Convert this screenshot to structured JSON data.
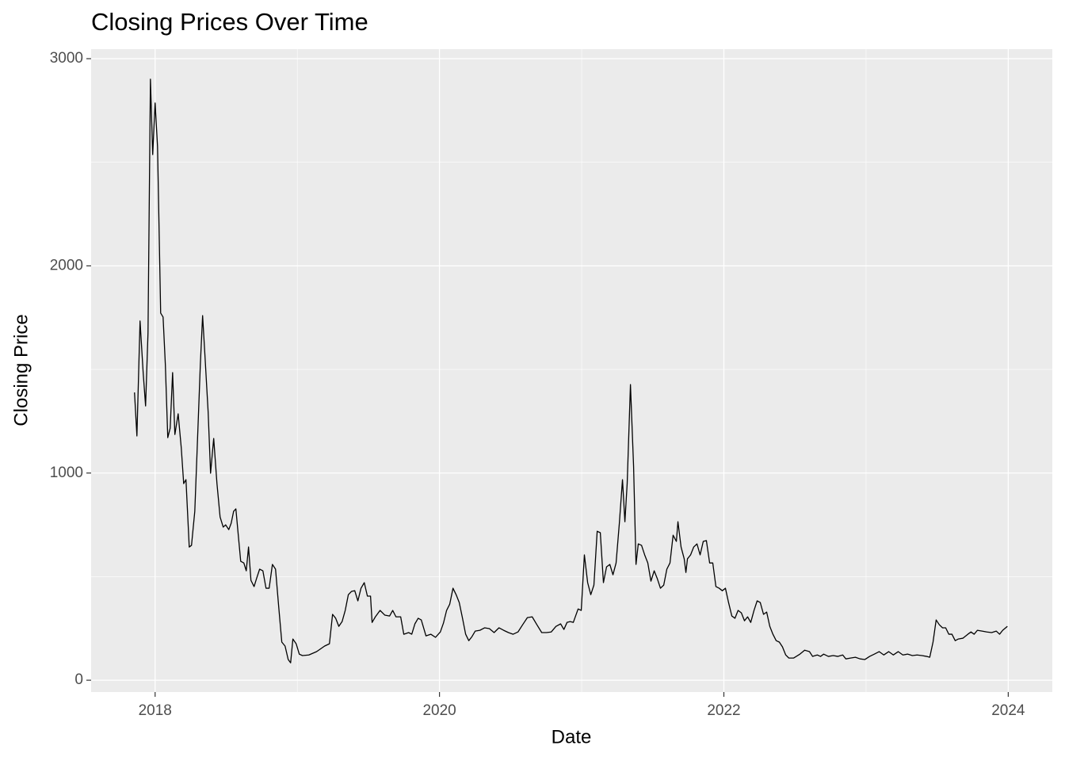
{
  "chart_data": {
    "type": "line",
    "title": "Closing Prices Over Time",
    "x_label": "Date",
    "y_label": "Closing Price",
    "xlim": [
      2017.55,
      2024.31
    ],
    "ylim": [
      -57,
      3046
    ],
    "xticks": [
      2018,
      2020,
      2022,
      2024
    ],
    "yticks": [
      0,
      1000,
      2000,
      3000
    ],
    "minor_xticks": [
      2019,
      2021,
      2023
    ],
    "minor_yticks": [
      500,
      1500,
      2500
    ],
    "grid": true,
    "background": "#ebebeb",
    "series": [
      {
        "color": "#000000",
        "x": [
          2017.855,
          2017.872,
          2017.894,
          2017.916,
          2017.933,
          2017.95,
          2017.967,
          2017.983,
          2018.0,
          2018.017,
          2018.039,
          2018.056,
          2018.072,
          2018.089,
          2018.106,
          2018.123,
          2018.139,
          2018.162,
          2018.184,
          2018.201,
          2018.217,
          2018.24,
          2018.256,
          2018.279,
          2018.295,
          2018.318,
          2018.334,
          2018.351,
          2018.373,
          2018.39,
          2018.412,
          2018.435,
          2018.457,
          2018.479,
          2018.496,
          2018.518,
          2018.535,
          2018.552,
          2018.568,
          2018.585,
          2018.602,
          2018.624,
          2018.641,
          2018.657,
          2018.674,
          2018.696,
          2018.713,
          2018.735,
          2018.758,
          2018.78,
          2018.802,
          2018.825,
          2018.847,
          2018.869,
          2018.891,
          2018.914,
          2018.936,
          2018.953,
          2018.969,
          2018.992,
          2019.014,
          2019.036,
          2019.081,
          2019.136,
          2019.192,
          2019.226,
          2019.248,
          2019.27,
          2019.292,
          2019.315,
          2019.337,
          2019.359,
          2019.382,
          2019.404,
          2019.426,
          2019.448,
          2019.471,
          2019.493,
          2019.515,
          2019.526,
          2019.549,
          2019.582,
          2019.616,
          2019.649,
          2019.671,
          2019.694,
          2019.727,
          2019.749,
          2019.783,
          2019.805,
          2019.827,
          2019.85,
          2019.872,
          2019.905,
          2019.939,
          2019.972,
          2020.006,
          2020.028,
          2020.05,
          2020.072,
          2020.095,
          2020.117,
          2020.139,
          2020.162,
          2020.184,
          2020.206,
          2020.228,
          2020.251,
          2020.284,
          2020.318,
          2020.351,
          2020.384,
          2020.418,
          2020.451,
          2020.485,
          2020.518,
          2020.552,
          2020.585,
          2020.618,
          2020.652,
          2020.685,
          2020.719,
          2020.752,
          2020.786,
          2020.819,
          2020.852,
          2020.875,
          2020.897,
          2020.919,
          2020.941,
          2020.975,
          2020.997,
          2021.019,
          2021.042,
          2021.064,
          2021.086,
          2021.109,
          2021.131,
          2021.153,
          2021.175,
          2021.198,
          2021.22,
          2021.242,
          2021.265,
          2021.287,
          2021.304,
          2021.32,
          2021.343,
          2021.365,
          2021.382,
          2021.398,
          2021.421,
          2021.443,
          2021.465,
          2021.487,
          2021.51,
          2021.532,
          2021.554,
          2021.577,
          2021.599,
          2021.621,
          2021.643,
          2021.666,
          2021.677,
          2021.699,
          2021.721,
          2021.733,
          2021.744,
          2021.766,
          2021.788,
          2021.811,
          2021.833,
          2021.855,
          2021.877,
          2021.9,
          2021.922,
          2021.944,
          2021.967,
          2021.989,
          2022.011,
          2022.033,
          2022.056,
          2022.078,
          2022.1,
          2022.123,
          2022.145,
          2022.167,
          2022.189,
          2022.212,
          2022.234,
          2022.256,
          2022.279,
          2022.301,
          2022.323,
          2022.345,
          2022.368,
          2022.39,
          2022.412,
          2022.435,
          2022.457,
          2022.49,
          2022.535,
          2022.568,
          2022.602,
          2022.624,
          2022.657,
          2022.68,
          2022.702,
          2022.735,
          2022.769,
          2022.802,
          2022.836,
          2022.858,
          2022.891,
          2022.925,
          2022.958,
          2022.992,
          2023.025,
          2023.058,
          2023.092,
          2023.125,
          2023.159,
          2023.192,
          2023.226,
          2023.259,
          2023.292,
          2023.326,
          2023.359,
          2023.393,
          2023.426,
          2023.448,
          2023.471,
          2023.493,
          2023.515,
          2023.538,
          2023.56,
          2023.582,
          2023.604,
          2023.627,
          2023.649,
          2023.682,
          2023.716,
          2023.738,
          2023.76,
          2023.783,
          2023.816,
          2023.85,
          2023.883,
          2023.916,
          2023.939,
          2023.961,
          2023.994
        ],
        "values": [
          1389,
          1179,
          1734,
          1485,
          1324,
          1676,
          2901,
          2537,
          2786,
          2576,
          1772,
          1753,
          1523,
          1171,
          1217,
          1485,
          1186,
          1286,
          1121,
          949,
          968,
          643,
          651,
          815,
          1102,
          1523,
          1760,
          1561,
          1294,
          999,
          1167,
          949,
          788,
          739,
          750,
          727,
          758,
          815,
          827,
          700,
          574,
          566,
          528,
          643,
          482,
          452,
          490,
          536,
          528,
          444,
          444,
          559,
          536,
          356,
          184,
          165,
          100,
          84,
          199,
          176,
          126,
          119,
          122,
          138,
          165,
          176,
          318,
          299,
          260,
          283,
          337,
          413,
          429,
          432,
          383,
          444,
          471,
          406,
          406,
          279,
          306,
          337,
          314,
          310,
          337,
          306,
          306,
          222,
          230,
          222,
          272,
          299,
          291,
          214,
          222,
          207,
          233,
          276,
          337,
          367,
          444,
          413,
          375,
          299,
          222,
          191,
          210,
          237,
          241,
          253,
          249,
          230,
          253,
          241,
          230,
          222,
          233,
          268,
          302,
          306,
          268,
          230,
          230,
          233,
          260,
          272,
          245,
          279,
          283,
          279,
          344,
          337,
          605,
          471,
          413,
          459,
          719,
          712,
          471,
          547,
          559,
          509,
          566,
          758,
          968,
          765,
          949,
          1427,
          1033,
          559,
          658,
          651,
          605,
          566,
          478,
          528,
          490,
          444,
          459,
          536,
          566,
          700,
          670,
          765,
          643,
          586,
          520,
          586,
          605,
          643,
          658,
          605,
          670,
          674,
          566,
          566,
          452,
          444,
          432,
          444,
          375,
          310,
          299,
          337,
          325,
          287,
          306,
          279,
          337,
          383,
          375,
          318,
          329,
          260,
          222,
          191,
          184,
          161,
          122,
          107,
          107,
          126,
          145,
          138,
          115,
          122,
          115,
          126,
          115,
          119,
          115,
          122,
          103,
          107,
          111,
          103,
          100,
          115,
          126,
          138,
          122,
          138,
          122,
          138,
          122,
          126,
          119,
          122,
          119,
          115,
          111,
          184,
          291,
          268,
          253,
          253,
          222,
          222,
          191,
          199,
          203,
          222,
          233,
          222,
          241,
          237,
          233,
          230,
          237,
          222,
          241,
          260
        ]
      }
    ]
  }
}
